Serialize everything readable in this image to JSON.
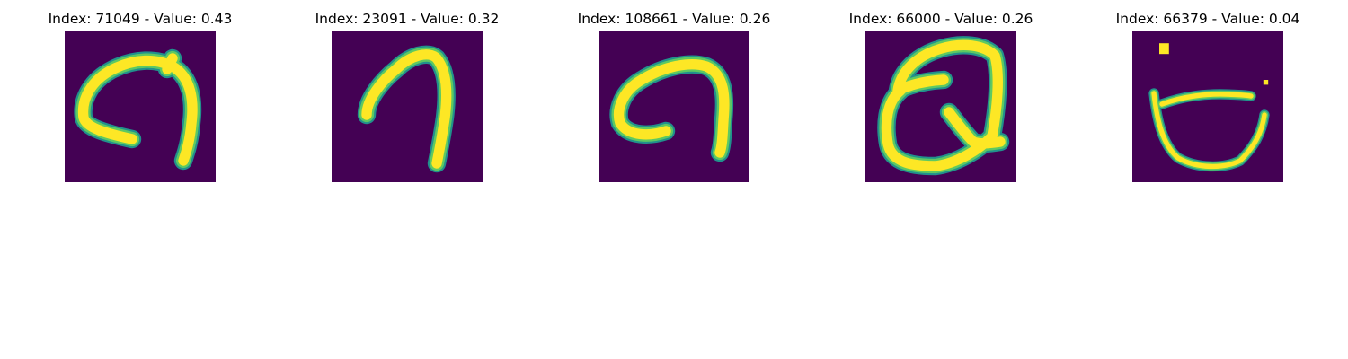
{
  "colors": {
    "background": "#440154",
    "stroke_outer": "#21918c",
    "stroke_mid": "#5ec962",
    "stroke_core": "#fde725"
  },
  "panels": [
    {
      "title": "Index: 71049 - Value: 0.43"
    },
    {
      "title": "Index: 23091 - Value: 0.32"
    },
    {
      "title": "Index: 108661 - Value: 0.26"
    },
    {
      "title": "Index: 66000 - Value: 0.26"
    },
    {
      "title": "Index: 66379 - Value: 0.04"
    }
  ]
}
